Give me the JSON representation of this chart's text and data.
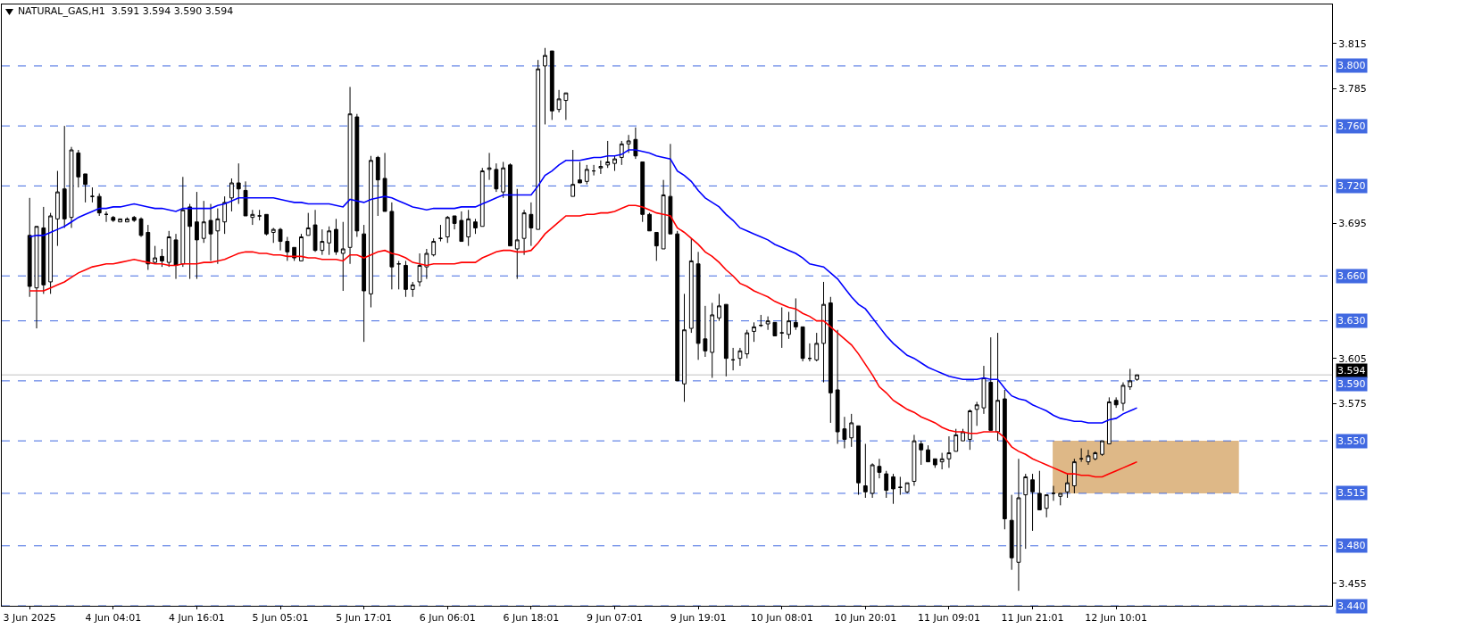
{
  "chart_data": {
    "type": "candlestick",
    "title": "NATURAL_GAS,H1  3.591 3.594 3.590 3.594",
    "categories": [
      "3 Jun 2025",
      null,
      null,
      null,
      null,
      null,
      null,
      null,
      null,
      null,
      null,
      null,
      "4 Jun 04:01",
      null,
      null,
      null,
      null,
      null,
      null,
      null,
      null,
      null,
      null,
      null,
      "4 Jun 16:01",
      null,
      null,
      null,
      null,
      null,
      null,
      null,
      null,
      null,
      null,
      null,
      "5 Jun 05:01",
      null,
      null,
      null,
      null,
      null,
      null,
      null,
      null,
      null,
      null,
      null,
      "5 Jun 17:01",
      null,
      null,
      null,
      null,
      null,
      null,
      null,
      null,
      null,
      null,
      null,
      "6 Jun 06:01",
      null,
      null,
      null,
      null,
      null,
      null,
      null,
      null,
      null,
      null,
      null,
      "6 Jun 18:01",
      null,
      null,
      null,
      null,
      null,
      null,
      null,
      null,
      null,
      null,
      null,
      "9 Jun 07:01",
      null,
      null,
      null,
      null,
      null,
      null,
      null,
      null,
      null,
      null,
      null,
      "9 Jun 19:01",
      null,
      null,
      null,
      null,
      null,
      null,
      null,
      null,
      null,
      null,
      null,
      "10 Jun 08:01",
      null,
      null,
      null,
      null,
      null,
      null,
      null,
      null,
      null,
      null,
      null,
      "10 Jun 20:01",
      null,
      null,
      null,
      null,
      null,
      null,
      null,
      null,
      null,
      null,
      null,
      "11 Jun 09:01",
      null,
      null,
      null,
      null,
      null,
      null,
      null,
      null,
      null,
      null,
      null,
      "11 Jun 21:01",
      null,
      null,
      null,
      null,
      null,
      null,
      null,
      null,
      null,
      null,
      null,
      "12 Jun 10:01",
      null,
      null,
      null
    ],
    "ohlc": [
      [
        3.687,
        3.712,
        3.646,
        3.653
      ],
      [
        3.652,
        3.693,
        3.625,
        3.693
      ],
      [
        3.692,
        3.706,
        3.648,
        3.654
      ],
      [
        3.656,
        3.702,
        3.648,
        3.7
      ],
      [
        3.698,
        3.73,
        3.68,
        3.716
      ],
      [
        3.718,
        3.76,
        3.692,
        3.698
      ],
      [
        3.699,
        3.746,
        3.692,
        3.744
      ],
      [
        3.742,
        3.744,
        3.719,
        3.726
      ],
      [
        3.728,
        3.728,
        3.709,
        3.721
      ],
      [
        3.713,
        3.719,
        3.709,
        3.713
      ],
      [
        3.713,
        3.715,
        3.7,
        3.702
      ],
      [
        3.701,
        3.703,
        3.696,
        3.701
      ],
      [
        3.699,
        3.7,
        3.696,
        3.697
      ],
      [
        3.696,
        3.698,
        3.696,
        3.698
      ],
      [
        3.696,
        3.699,
        3.696,
        3.698
      ],
      [
        3.699,
        3.7,
        3.696,
        3.697
      ],
      [
        3.698,
        3.699,
        3.686,
        3.687
      ],
      [
        3.689,
        3.694,
        3.664,
        3.668
      ],
      [
        3.669,
        3.68,
        3.668,
        3.672
      ],
      [
        3.673,
        3.678,
        3.666,
        3.67
      ],
      [
        3.669,
        3.69,
        3.666,
        3.686
      ],
      [
        3.684,
        3.688,
        3.658,
        3.667
      ],
      [
        3.668,
        3.726,
        3.666,
        3.704
      ],
      [
        3.706,
        3.708,
        3.658,
        3.693
      ],
      [
        3.696,
        3.716,
        3.658,
        3.684
      ],
      [
        3.685,
        3.71,
        3.682,
        3.696
      ],
      [
        3.697,
        3.708,
        3.67,
        3.688
      ],
      [
        3.69,
        3.705,
        3.668,
        3.698
      ],
      [
        3.696,
        3.713,
        3.688,
        3.709
      ],
      [
        3.712,
        3.725,
        3.703,
        3.722
      ],
      [
        3.722,
        3.735,
        3.708,
        3.718
      ],
      [
        3.717,
        3.723,
        3.7,
        3.7
      ],
      [
        3.699,
        3.704,
        3.694,
        3.701
      ],
      [
        3.7,
        3.704,
        3.697,
        3.7
      ],
      [
        3.701,
        3.701,
        3.687,
        3.688
      ],
      [
        3.689,
        3.692,
        3.682,
        3.691
      ],
      [
        3.691,
        3.692,
        3.677,
        3.683
      ],
      [
        3.683,
        3.686,
        3.67,
        3.676
      ],
      [
        3.679,
        3.679,
        3.67,
        3.672
      ],
      [
        3.67,
        3.688,
        3.67,
        3.686
      ],
      [
        3.687,
        3.702,
        3.687,
        3.692
      ],
      [
        3.694,
        3.704,
        3.676,
        3.677
      ],
      [
        3.677,
        3.691,
        3.674,
        3.683
      ],
      [
        3.682,
        3.693,
        3.674,
        3.69
      ],
      [
        3.691,
        3.698,
        3.674,
        3.676
      ],
      [
        3.675,
        3.696,
        3.65,
        3.678
      ],
      [
        3.679,
        3.786,
        3.668,
        3.768
      ],
      [
        3.766,
        3.768,
        3.686,
        3.69
      ],
      [
        3.688,
        3.694,
        3.616,
        3.65
      ],
      [
        3.648,
        3.74,
        3.639,
        3.737
      ],
      [
        3.739,
        3.74,
        3.7,
        3.724
      ],
      [
        3.725,
        3.742,
        3.703,
        3.703
      ],
      [
        3.703,
        3.709,
        3.651,
        3.666
      ],
      [
        3.668,
        3.67,
        3.651,
        3.668
      ],
      [
        3.667,
        3.67,
        3.646,
        3.651
      ],
      [
        3.651,
        3.656,
        3.646,
        3.654
      ],
      [
        3.656,
        3.675,
        3.653,
        3.667
      ],
      [
        3.666,
        3.678,
        3.658,
        3.675
      ],
      [
        3.674,
        3.685,
        3.673,
        3.683
      ],
      [
        3.685,
        3.694,
        3.683,
        3.685
      ],
      [
        3.686,
        3.7,
        3.682,
        3.699
      ],
      [
        3.7,
        3.7,
        3.691,
        3.695
      ],
      [
        3.697,
        3.703,
        3.683,
        3.683
      ],
      [
        3.686,
        3.704,
        3.68,
        3.698
      ],
      [
        3.696,
        3.698,
        3.688,
        3.692
      ],
      [
        3.693,
        3.732,
        3.693,
        3.73
      ],
      [
        3.731,
        3.742,
        3.724,
        3.732
      ],
      [
        3.731,
        3.735,
        3.716,
        3.718
      ],
      [
        3.716,
        3.736,
        3.712,
        3.732
      ],
      [
        3.734,
        3.735,
        3.68,
        3.68
      ],
      [
        3.678,
        3.718,
        3.658,
        3.684
      ],
      [
        3.685,
        3.704,
        3.674,
        3.702
      ],
      [
        3.701,
        3.709,
        3.68,
        3.692
      ],
      [
        3.691,
        3.804,
        3.691,
        3.798
      ],
      [
        3.8,
        3.812,
        3.761,
        3.807
      ],
      [
        3.81,
        3.81,
        3.764,
        3.77
      ],
      [
        3.771,
        3.784,
        3.769,
        3.778
      ],
      [
        3.777,
        3.782,
        3.764,
        3.782
      ],
      [
        3.713,
        3.744,
        3.713,
        3.721
      ],
      [
        3.724,
        3.736,
        3.722,
        3.722
      ],
      [
        3.723,
        3.734,
        3.721,
        3.731
      ],
      [
        3.73,
        3.734,
        3.727,
        3.73
      ],
      [
        3.732,
        3.737,
        3.728,
        3.733
      ],
      [
        3.734,
        3.75,
        3.732,
        3.736
      ],
      [
        3.735,
        3.74,
        3.73,
        3.738
      ],
      [
        3.739,
        3.75,
        3.734,
        3.748
      ],
      [
        3.748,
        3.754,
        3.742,
        3.75
      ],
      [
        3.751,
        3.759,
        3.738,
        3.74
      ],
      [
        3.736,
        3.736,
        3.696,
        3.701
      ],
      [
        3.701,
        3.702,
        3.69,
        3.69
      ],
      [
        3.689,
        3.689,
        3.67,
        3.68
      ],
      [
        3.678,
        3.724,
        3.678,
        3.714
      ],
      [
        3.713,
        3.748,
        3.688,
        3.688
      ],
      [
        3.688,
        3.69,
        3.59,
        3.59
      ],
      [
        3.588,
        3.648,
        3.576,
        3.624
      ],
      [
        3.625,
        3.685,
        3.622,
        3.67
      ],
      [
        3.668,
        3.676,
        3.604,
        3.615
      ],
      [
        3.618,
        3.64,
        3.606,
        3.61
      ],
      [
        3.609,
        3.642,
        3.592,
        3.634
      ],
      [
        3.632,
        3.648,
        3.63,
        3.64
      ],
      [
        3.641,
        3.641,
        3.593,
        3.605
      ],
      [
        3.604,
        3.612,
        3.597,
        3.604
      ],
      [
        3.605,
        3.612,
        3.6,
        3.61
      ],
      [
        3.608,
        3.624,
        3.605,
        3.622
      ],
      [
        3.623,
        3.629,
        3.616,
        3.626
      ],
      [
        3.627,
        3.634,
        3.626,
        3.627
      ],
      [
        3.628,
        3.633,
        3.624,
        3.63
      ],
      [
        3.629,
        3.629,
        3.62,
        3.62
      ],
      [
        3.622,
        3.639,
        3.612,
        3.622
      ],
      [
        3.621,
        3.636,
        3.618,
        3.63
      ],
      [
        3.629,
        3.645,
        3.624,
        3.626
      ],
      [
        3.626,
        3.626,
        3.603,
        3.605
      ],
      [
        3.605,
        3.615,
        3.603,
        3.605
      ],
      [
        3.604,
        3.622,
        3.603,
        3.615
      ],
      [
        3.615,
        3.656,
        3.589,
        3.641
      ],
      [
        3.642,
        3.646,
        3.562,
        3.582
      ],
      [
        3.584,
        3.624,
        3.548,
        3.556
      ],
      [
        3.558,
        3.566,
        3.545,
        3.551
      ],
      [
        3.552,
        3.568,
        3.546,
        3.562
      ],
      [
        3.56,
        3.56,
        3.514,
        3.522
      ],
      [
        3.52,
        3.548,
        3.512,
        3.516
      ],
      [
        3.515,
        3.535,
        3.512,
        3.534
      ],
      [
        3.533,
        3.538,
        3.525,
        3.529
      ],
      [
        3.528,
        3.53,
        3.512,
        3.517
      ],
      [
        3.526,
        3.528,
        3.508,
        3.518
      ],
      [
        3.519,
        3.526,
        3.514,
        3.519
      ],
      [
        3.516,
        3.522,
        3.515,
        3.522
      ],
      [
        3.523,
        3.554,
        3.52,
        3.55
      ],
      [
        3.548,
        3.55,
        3.534,
        3.544
      ],
      [
        3.544,
        3.547,
        3.536,
        3.536
      ],
      [
        3.538,
        3.538,
        3.532,
        3.534
      ],
      [
        3.536,
        3.542,
        3.531,
        3.538
      ],
      [
        3.538,
        3.553,
        3.532,
        3.542
      ],
      [
        3.543,
        3.558,
        3.543,
        3.554
      ],
      [
        3.55,
        3.558,
        3.55,
        3.556
      ],
      [
        3.551,
        3.571,
        3.544,
        3.57
      ],
      [
        3.571,
        3.576,
        3.56,
        3.574
      ],
      [
        3.572,
        3.6,
        3.568,
        3.592
      ],
      [
        3.589,
        3.619,
        3.557,
        3.557
      ],
      [
        3.556,
        3.622,
        3.55,
        3.577
      ],
      [
        3.578,
        3.584,
        3.491,
        3.498
      ],
      [
        3.497,
        3.514,
        3.464,
        3.472
      ],
      [
        3.469,
        3.538,
        3.45,
        3.512
      ],
      [
        3.514,
        3.528,
        3.478,
        3.526
      ],
      [
        3.524,
        3.528,
        3.49,
        3.516
      ],
      [
        3.515,
        3.53,
        3.504,
        3.504
      ],
      [
        3.505,
        3.514,
        3.499,
        3.514
      ],
      [
        3.515,
        3.52,
        3.51,
        3.515
      ],
      [
        3.513,
        3.515,
        3.507,
        3.515
      ],
      [
        3.516,
        3.528,
        3.512,
        3.522
      ],
      [
        3.52,
        3.538,
        3.515,
        3.536
      ],
      [
        3.538,
        3.545,
        3.536,
        3.538
      ],
      [
        3.536,
        3.544,
        3.534,
        3.54
      ],
      [
        3.538,
        3.543,
        3.537,
        3.542
      ],
      [
        3.541,
        3.55,
        3.54,
        3.55
      ],
      [
        3.548,
        3.579,
        3.548,
        3.576
      ],
      [
        3.577,
        3.579,
        3.572,
        3.574
      ],
      [
        3.575,
        3.589,
        3.57,
        3.587
      ],
      [
        3.586,
        3.598,
        3.584,
        3.59
      ],
      [
        3.591,
        3.594,
        3.59,
        3.594
      ]
    ],
    "series": [
      {
        "type": "line",
        "color": "#0000ff",
        "values": [
          3.686,
          3.687,
          3.687,
          3.689,
          3.691,
          3.693,
          3.696,
          3.699,
          3.701,
          3.703,
          3.705,
          3.705,
          3.706,
          3.706,
          3.707,
          3.708,
          3.707,
          3.706,
          3.705,
          3.705,
          3.704,
          3.703,
          3.705,
          3.705,
          3.705,
          3.705,
          3.705,
          3.707,
          3.708,
          3.71,
          3.712,
          3.712,
          3.712,
          3.712,
          3.712,
          3.712,
          3.711,
          3.71,
          3.709,
          3.709,
          3.708,
          3.708,
          3.708,
          3.708,
          3.707,
          3.706,
          3.711,
          3.71,
          3.709,
          3.711,
          3.712,
          3.713,
          3.712,
          3.71,
          3.708,
          3.706,
          3.705,
          3.704,
          3.705,
          3.705,
          3.705,
          3.705,
          3.706,
          3.706,
          3.706,
          3.708,
          3.71,
          3.712,
          3.714,
          3.714,
          3.714,
          3.714,
          3.714,
          3.72,
          3.727,
          3.73,
          3.734,
          3.737,
          3.737,
          3.737,
          3.738,
          3.739,
          3.739,
          3.74,
          3.74,
          3.741,
          3.744,
          3.744,
          3.743,
          3.742,
          3.74,
          3.739,
          3.738,
          3.73,
          3.727,
          3.723,
          3.717,
          3.712,
          3.709,
          3.706,
          3.701,
          3.697,
          3.692,
          3.69,
          3.688,
          3.686,
          3.684,
          3.681,
          3.679,
          3.677,
          3.675,
          3.672,
          3.668,
          3.667,
          3.666,
          3.662,
          3.658,
          3.652,
          3.646,
          3.641,
          3.638,
          3.632,
          3.626,
          3.62,
          3.615,
          3.611,
          3.607,
          3.605,
          3.602,
          3.599,
          3.597,
          3.595,
          3.593,
          3.592,
          3.591,
          3.591,
          3.591,
          3.592,
          3.591,
          3.591,
          3.585,
          3.58,
          3.578,
          3.577,
          3.574,
          3.572,
          3.57,
          3.567,
          3.565,
          3.564,
          3.563,
          3.563,
          3.562,
          3.562,
          3.562,
          3.564,
          3.565,
          3.568,
          3.57,
          3.572
        ]
      },
      {
        "type": "line",
        "color": "#ff0000",
        "values": [
          3.65,
          3.65,
          3.65,
          3.652,
          3.654,
          3.656,
          3.659,
          3.662,
          3.664,
          3.666,
          3.667,
          3.668,
          3.668,
          3.669,
          3.67,
          3.671,
          3.67,
          3.669,
          3.668,
          3.668,
          3.667,
          3.667,
          3.668,
          3.668,
          3.668,
          3.669,
          3.669,
          3.67,
          3.671,
          3.673,
          3.675,
          3.676,
          3.676,
          3.675,
          3.675,
          3.674,
          3.674,
          3.673,
          3.673,
          3.673,
          3.672,
          3.672,
          3.671,
          3.671,
          3.671,
          3.67,
          3.674,
          3.674,
          3.672,
          3.674,
          3.676,
          3.677,
          3.675,
          3.674,
          3.672,
          3.669,
          3.668,
          3.667,
          3.668,
          3.668,
          3.668,
          3.668,
          3.669,
          3.669,
          3.669,
          3.672,
          3.674,
          3.676,
          3.677,
          3.677,
          3.676,
          3.676,
          3.677,
          3.682,
          3.688,
          3.692,
          3.696,
          3.7,
          3.7,
          3.7,
          3.701,
          3.701,
          3.702,
          3.702,
          3.703,
          3.705,
          3.707,
          3.707,
          3.706,
          3.704,
          3.702,
          3.701,
          3.7,
          3.692,
          3.689,
          3.685,
          3.681,
          3.676,
          3.673,
          3.669,
          3.664,
          3.66,
          3.655,
          3.653,
          3.65,
          3.648,
          3.646,
          3.643,
          3.641,
          3.639,
          3.638,
          3.635,
          3.633,
          3.63,
          3.63,
          3.626,
          3.622,
          3.618,
          3.614,
          3.608,
          3.601,
          3.594,
          3.586,
          3.582,
          3.577,
          3.574,
          3.571,
          3.569,
          3.566,
          3.564,
          3.562,
          3.559,
          3.557,
          3.556,
          3.556,
          3.555,
          3.555,
          3.556,
          3.556,
          3.556,
          3.552,
          3.546,
          3.543,
          3.541,
          3.538,
          3.536,
          3.534,
          3.532,
          3.53,
          3.528,
          3.528,
          3.527,
          3.527,
          3.526,
          3.526,
          3.528,
          3.53,
          3.532,
          3.534,
          3.536
        ]
      }
    ],
    "ylim": [
      3.44,
      3.841
    ],
    "yticks": [
      3.455,
      3.575,
      3.605,
      3.695,
      3.785,
      3.815
    ],
    "ref_lines": [
      {
        "axis": "y",
        "value": 3.8,
        "label": "3.800",
        "color": "#4169e1",
        "line_style": "dashed"
      },
      {
        "axis": "y",
        "value": 3.76,
        "label": "3.760",
        "color": "#4169e1",
        "line_style": "dashed"
      },
      {
        "axis": "y",
        "value": 3.72,
        "label": "3.720",
        "color": "#4169e1",
        "line_style": "dashed"
      },
      {
        "axis": "y",
        "value": 3.66,
        "label": "3.660",
        "color": "#4169e1",
        "line_style": "dashed"
      },
      {
        "axis": "y",
        "value": 3.63,
        "label": "3.630",
        "color": "#4169e1",
        "line_style": "dashed"
      },
      {
        "axis": "y",
        "value": 3.594,
        "label": "3.594",
        "color": "#c0c0c0",
        "line_style": "solid"
      },
      {
        "axis": "y",
        "value": 3.59,
        "label": "3.590",
        "color": "#4169e1",
        "line_style": "dashed"
      },
      {
        "axis": "y",
        "value": 3.55,
        "label": "3.550",
        "color": "#4169e1",
        "line_style": "dashed"
      },
      {
        "axis": "y",
        "value": 3.515,
        "label": "3.515",
        "color": "#4169e1",
        "line_style": "dashed"
      },
      {
        "axis": "y",
        "value": 3.48,
        "label": "3.480",
        "color": "#4169e1",
        "line_style": "dashed"
      },
      {
        "axis": "y",
        "value": 3.44,
        "label": "3.440",
        "color": "#4169e1",
        "line_style": "dashed"
      }
    ],
    "bands": [
      {
        "axis": "y",
        "from": 3.515,
        "to": 3.55,
        "color": "#deb887"
      }
    ]
  }
}
